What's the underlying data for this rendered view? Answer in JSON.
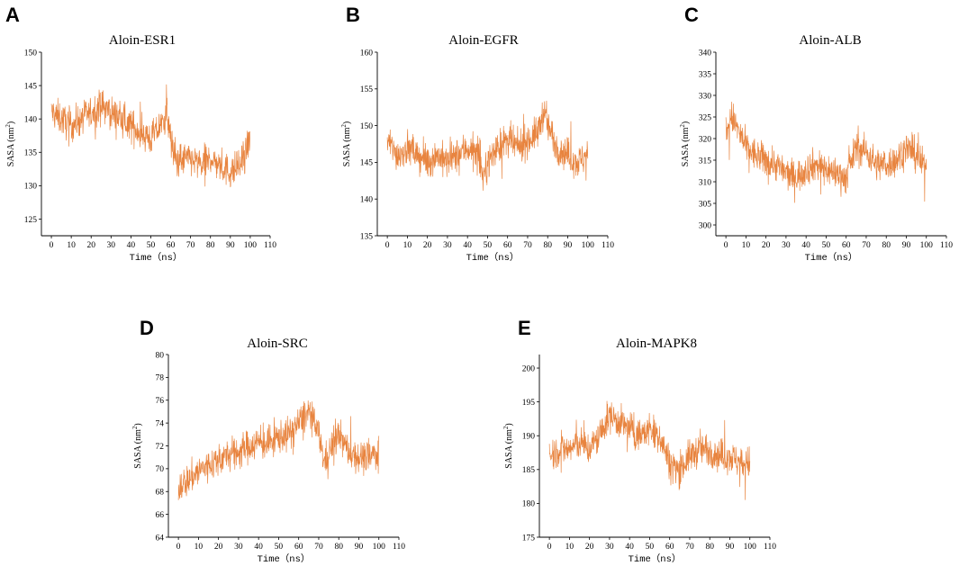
{
  "chart_data": [
    {
      "type": "line",
      "panel_label": "A",
      "title": "Aloin-ESR1",
      "xlabel": "Time（ns）",
      "ylabel": "SASA (nm²)",
      "ylabel_base": "SASA (nm",
      "ylabel_sup": "2",
      "ylabel_end": ")",
      "xlim": [
        -5,
        110
      ],
      "ylim": [
        122.5,
        150
      ],
      "xticks": [
        0,
        10,
        20,
        30,
        40,
        50,
        60,
        70,
        80,
        90,
        100,
        110
      ],
      "yticks": [
        125,
        130,
        135,
        140,
        145,
        150
      ],
      "color": "#e8843f",
      "series": [
        {
          "name": "SASA",
          "x": [
            0,
            5,
            10,
            15,
            20,
            25,
            30,
            35,
            40,
            45,
            50,
            55,
            58,
            60,
            62,
            65,
            70,
            75,
            80,
            85,
            90,
            95,
            100
          ],
          "y": [
            141,
            140,
            139,
            140,
            141,
            142,
            141,
            140,
            139,
            138,
            137,
            139,
            141,
            137,
            134,
            134,
            134,
            133,
            134,
            133,
            132,
            133,
            137
          ]
        }
      ]
    },
    {
      "type": "line",
      "panel_label": "B",
      "title": "Aloin-EGFR",
      "xlabel": "Time（ns）",
      "ylabel": "SASA (nm²)",
      "ylabel_base": "SASA (nm",
      "ylabel_sup": "2",
      "ylabel_end": ")",
      "xlim": [
        -5,
        110
      ],
      "ylim": [
        135,
        160
      ],
      "xticks": [
        0,
        10,
        20,
        30,
        40,
        50,
        60,
        70,
        80,
        90,
        100,
        110
      ],
      "yticks": [
        135,
        140,
        145,
        150,
        155,
        160
      ],
      "color": "#e8843f",
      "series": [
        {
          "name": "SASA",
          "x": [
            0,
            5,
            10,
            15,
            20,
            25,
            30,
            35,
            40,
            45,
            48,
            50,
            55,
            60,
            65,
            70,
            75,
            78,
            80,
            85,
            90,
            95,
            100
          ],
          "y": [
            148,
            146,
            147,
            146,
            145,
            146,
            145,
            146,
            147,
            146,
            143,
            145,
            147,
            148,
            147,
            148,
            149,
            152,
            150,
            147,
            146,
            145,
            146
          ]
        }
      ]
    },
    {
      "type": "line",
      "panel_label": "C",
      "title": "Aloin-ALB",
      "xlabel": "Time（ns）",
      "ylabel": "SASA (nm²)",
      "ylabel_base": "SASA (nm",
      "ylabel_sup": "2",
      "ylabel_end": ")",
      "xlim": [
        -5,
        110
      ],
      "ylim": [
        297.5,
        340
      ],
      "xticks": [
        0,
        10,
        20,
        30,
        40,
        50,
        60,
        70,
        80,
        90,
        100,
        110
      ],
      "yticks": [
        300,
        305,
        310,
        315,
        320,
        325,
        330,
        335,
        340
      ],
      "color": "#e8843f",
      "series": [
        {
          "name": "SASA",
          "x": [
            0,
            3,
            6,
            10,
            15,
            20,
            25,
            30,
            35,
            40,
            45,
            50,
            55,
            60,
            65,
            70,
            75,
            80,
            85,
            90,
            95,
            100
          ],
          "y": [
            322,
            325,
            322,
            318,
            316,
            315,
            314,
            312,
            311,
            313,
            314,
            313,
            312,
            311,
            318,
            317,
            314,
            314,
            315,
            318,
            316,
            313
          ]
        }
      ]
    },
    {
      "type": "line",
      "panel_label": "D",
      "title": "Aloin-SRC",
      "xlabel": "Time（ns）",
      "ylabel": "SASA (nm²)",
      "ylabel_base": "SASA (nm",
      "ylabel_sup": "2",
      "ylabel_end": ")",
      "xlim": [
        -5,
        110
      ],
      "ylim": [
        64,
        80
      ],
      "xticks": [
        0,
        10,
        20,
        30,
        40,
        50,
        60,
        70,
        80,
        90,
        100,
        110
      ],
      "yticks": [
        64,
        66,
        68,
        70,
        72,
        74,
        76,
        78,
        80
      ],
      "color": "#e8843f",
      "series": [
        {
          "name": "SASA",
          "x": [
            0,
            5,
            10,
            15,
            20,
            25,
            30,
            35,
            40,
            45,
            50,
            55,
            60,
            65,
            70,
            73,
            75,
            80,
            85,
            90,
            95,
            100
          ],
          "y": [
            68.5,
            69,
            69.8,
            70.3,
            70.8,
            71.2,
            71.5,
            72,
            72.3,
            72.2,
            72.8,
            73,
            74,
            75,
            73,
            70.5,
            71.5,
            73,
            71.5,
            71,
            71,
            71.5
          ]
        }
      ]
    },
    {
      "type": "line",
      "panel_label": "E",
      "title": "Aloin-MAPK8",
      "xlabel": "Time（ns）",
      "ylabel": "SASA (nm²)",
      "ylabel_base": "SASA (nm",
      "ylabel_sup": "2",
      "ylabel_end": ")",
      "xlim": [
        -5,
        110
      ],
      "ylim": [
        175,
        202
      ],
      "xticks": [
        0,
        10,
        20,
        30,
        40,
        50,
        60,
        70,
        80,
        90,
        100,
        110
      ],
      "yticks": [
        175,
        180,
        185,
        190,
        195,
        200
      ],
      "color": "#e8843f",
      "series": [
        {
          "name": "SASA",
          "x": [
            0,
            5,
            10,
            15,
            20,
            25,
            30,
            35,
            40,
            45,
            50,
            55,
            60,
            65,
            70,
            75,
            80,
            85,
            90,
            95,
            100
          ],
          "y": [
            187,
            188,
            188,
            189,
            188,
            190,
            193,
            192,
            191,
            190,
            191,
            190,
            186,
            185,
            187,
            188,
            188,
            187,
            187,
            186,
            186
          ]
        }
      ]
    }
  ]
}
